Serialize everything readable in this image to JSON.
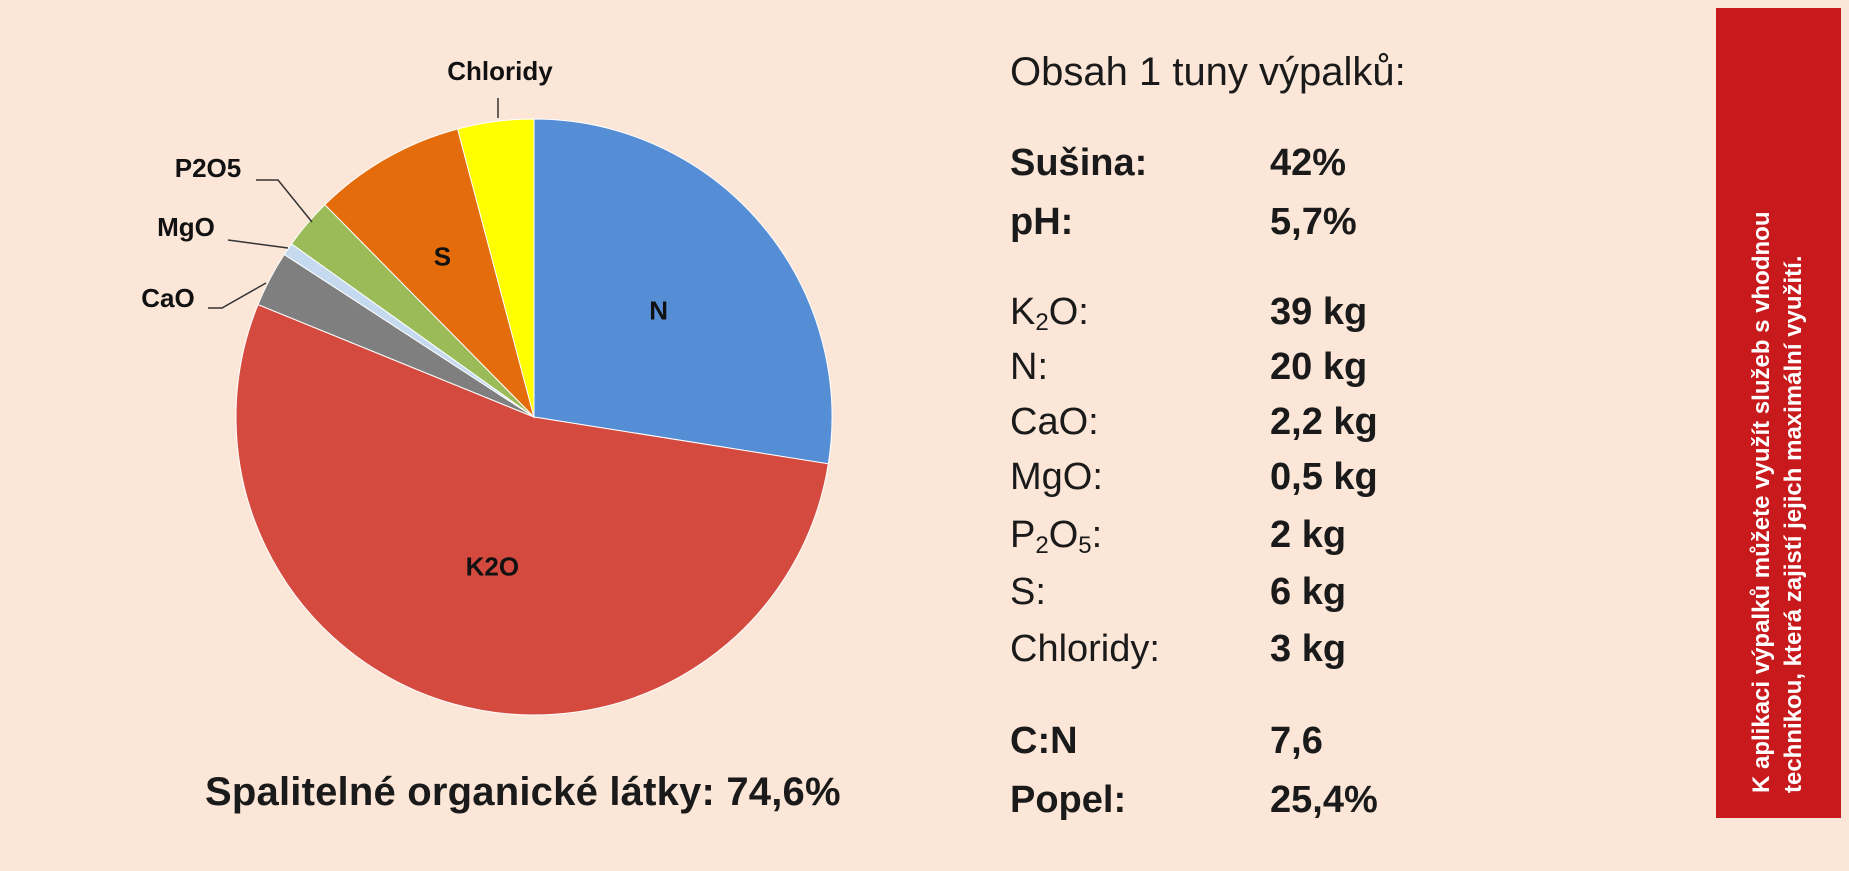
{
  "chart_data": {
    "type": "pie",
    "slices": [
      {
        "label": "N",
        "value": 20,
        "color": "#558ed5"
      },
      {
        "label": "K2O",
        "value": 39,
        "color": "#d44a3f"
      },
      {
        "label": "CaO",
        "value": 2.2,
        "color": "#7f7f7f"
      },
      {
        "label": "MgO",
        "value": 0.5,
        "color": "#c5d9ef"
      },
      {
        "label": "P2O5",
        "value": 2,
        "color": "#9bbb59"
      },
      {
        "label": "S",
        "value": 6,
        "color": "#e46c0a"
      },
      {
        "label": "Chloridy",
        "value": 3,
        "color": "#ffff00"
      }
    ],
    "footer": "Spalitelné organické látky: 74,6%"
  },
  "panel": {
    "title": "Obsah 1 tuny výpalků:",
    "dry": {
      "label": "Sušina:",
      "value": "42%"
    },
    "ph": {
      "label": "pH:",
      "value": "5,7%"
    },
    "k2o": {
      "label_main": "K",
      "label_sub": "2",
      "label_end": "O:",
      "value": "39 kg"
    },
    "n": {
      "label": "N:",
      "value": "20 kg"
    },
    "cao": {
      "label": "CaO:",
      "value": "2,2 kg"
    },
    "mgo": {
      "label": "MgO:",
      "value": "0,5 kg"
    },
    "p2o5": {
      "label_p": "P",
      "label_sub1": "2",
      "label_o": "O",
      "label_sub2": "5",
      "label_end": ":",
      "value": "2 kg"
    },
    "s": {
      "label": "S:",
      "value": "6 kg"
    },
    "chloridy": {
      "label": "Chloridy:",
      "value": "3 kg"
    },
    "cn": {
      "label": "C:N",
      "value": "7,6"
    },
    "ash": {
      "label": "Popel:",
      "value": "25,4%"
    }
  },
  "banner": {
    "line1": "K aplikaci výpalků můžete využít služeb s vhodnou",
    "line2": "technikou, která zajistí jejich maximální využití.",
    "background": "#c8191d"
  }
}
